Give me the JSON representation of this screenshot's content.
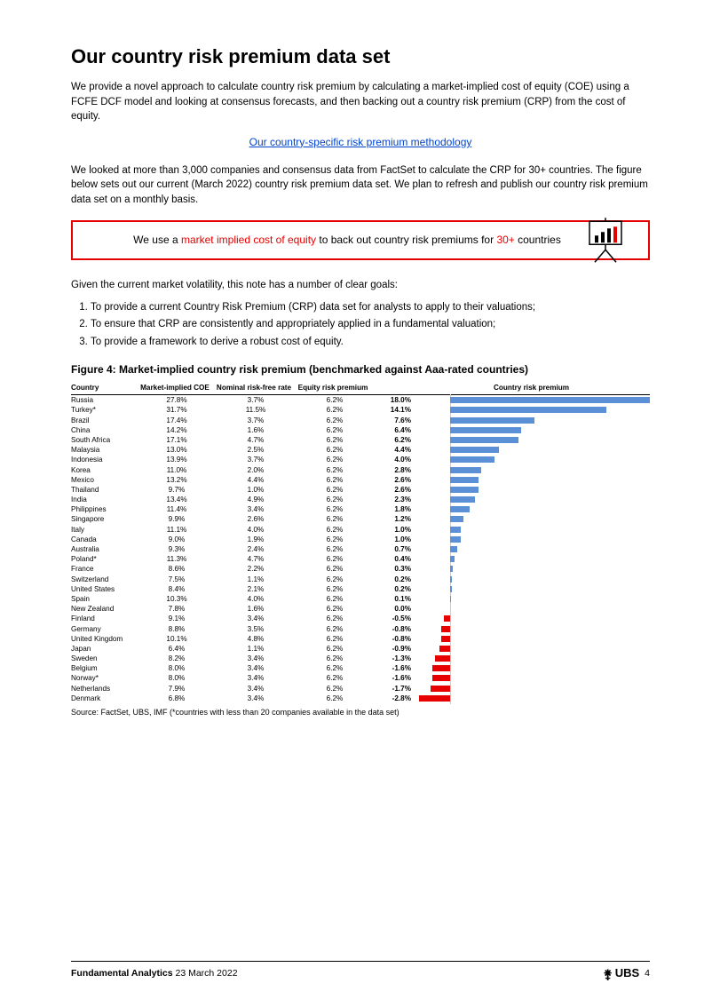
{
  "title": "Our country risk premium data set",
  "intro": "We provide a novel approach to calculate country risk premium by calculating a market-implied cost of equity (COE) using a FCFE DCF model and looking at consensus forecasts, and then backing out a country risk premium (CRP) from the cost of equity.",
  "methodology_link_text": "Our country-specific risk premium methodology",
  "para2": "We looked at more than 3,000 companies and consensus data from FactSet to calculate the CRP for 30+ countries. The figure below sets out our current (March 2022) country risk premium data set. We plan to refresh and publish our country risk premium data set on a monthly basis.",
  "callout_pre": "We use a ",
  "callout_red1": "market implied cost of equity",
  "callout_mid": " to back out country risk premiums for ",
  "callout_red2": "30+",
  "callout_post": " countries",
  "goals_lead": "Given the current market volatility, this note has a number of clear goals:",
  "goals": [
    "To provide a current Country Risk Premium (CRP) data set for analysts to apply to their valuations;",
    "To ensure that CRP are consistently and appropriately applied in a fundamental valuation;",
    "To provide a framework to derive a robust cost of equity."
  ],
  "figure_title": "Figure 4: Market-implied country risk premium (benchmarked against Aaa-rated countries)",
  "table": {
    "headers": {
      "country": "Country",
      "coe": "Market-implied COE",
      "rf": "Nominal risk-free rate",
      "erp": "Equity risk premium",
      "crp": "Country risk premium"
    },
    "chart": {
      "min": -3.0,
      "max": 18.0,
      "zero_color": "#cccccc",
      "pos_color": "#5b8fd6",
      "neg_color": "#e60000"
    },
    "rows": [
      {
        "country": "Russia",
        "coe": "27.8%",
        "rf": "3.7%",
        "erp": "6.2%",
        "crp_label": "18.0%",
        "crp": 18.0
      },
      {
        "country": "Turkey*",
        "coe": "31.7%",
        "rf": "11.5%",
        "erp": "6.2%",
        "crp_label": "14.1%",
        "crp": 14.1
      },
      {
        "country": "Brazil",
        "coe": "17.4%",
        "rf": "3.7%",
        "erp": "6.2%",
        "crp_label": "7.6%",
        "crp": 7.6
      },
      {
        "country": "China",
        "coe": "14.2%",
        "rf": "1.6%",
        "erp": "6.2%",
        "crp_label": "6.4%",
        "crp": 6.4
      },
      {
        "country": "South Africa",
        "coe": "17.1%",
        "rf": "4.7%",
        "erp": "6.2%",
        "crp_label": "6.2%",
        "crp": 6.2
      },
      {
        "country": "Malaysia",
        "coe": "13.0%",
        "rf": "2.5%",
        "erp": "6.2%",
        "crp_label": "4.4%",
        "crp": 4.4
      },
      {
        "country": "Indonesia",
        "coe": "13.9%",
        "rf": "3.7%",
        "erp": "6.2%",
        "crp_label": "4.0%",
        "crp": 4.0
      },
      {
        "country": "Korea",
        "coe": "11.0%",
        "rf": "2.0%",
        "erp": "6.2%",
        "crp_label": "2.8%",
        "crp": 2.8
      },
      {
        "country": "Mexico",
        "coe": "13.2%",
        "rf": "4.4%",
        "erp": "6.2%",
        "crp_label": "2.6%",
        "crp": 2.6
      },
      {
        "country": "Thailand",
        "coe": "9.7%",
        "rf": "1.0%",
        "erp": "6.2%",
        "crp_label": "2.6%",
        "crp": 2.6
      },
      {
        "country": "India",
        "coe": "13.4%",
        "rf": "4.9%",
        "erp": "6.2%",
        "crp_label": "2.3%",
        "crp": 2.3
      },
      {
        "country": "Philippines",
        "coe": "11.4%",
        "rf": "3.4%",
        "erp": "6.2%",
        "crp_label": "1.8%",
        "crp": 1.8
      },
      {
        "country": "Singapore",
        "coe": "9.9%",
        "rf": "2.6%",
        "erp": "6.2%",
        "crp_label": "1.2%",
        "crp": 1.2
      },
      {
        "country": "Italy",
        "coe": "11.1%",
        "rf": "4.0%",
        "erp": "6.2%",
        "crp_label": "1.0%",
        "crp": 1.0
      },
      {
        "country": "Canada",
        "coe": "9.0%",
        "rf": "1.9%",
        "erp": "6.2%",
        "crp_label": "1.0%",
        "crp": 1.0
      },
      {
        "country": "Australia",
        "coe": "9.3%",
        "rf": "2.4%",
        "erp": "6.2%",
        "crp_label": "0.7%",
        "crp": 0.7
      },
      {
        "country": "Poland*",
        "coe": "11.3%",
        "rf": "4.7%",
        "erp": "6.2%",
        "crp_label": "0.4%",
        "crp": 0.4
      },
      {
        "country": "France",
        "coe": "8.6%",
        "rf": "2.2%",
        "erp": "6.2%",
        "crp_label": "0.3%",
        "crp": 0.3
      },
      {
        "country": "Switzerland",
        "coe": "7.5%",
        "rf": "1.1%",
        "erp": "6.2%",
        "crp_label": "0.2%",
        "crp": 0.2
      },
      {
        "country": "United States",
        "coe": "8.4%",
        "rf": "2.1%",
        "erp": "6.2%",
        "crp_label": "0.2%",
        "crp": 0.2
      },
      {
        "country": "Spain",
        "coe": "10.3%",
        "rf": "4.0%",
        "erp": "6.2%",
        "crp_label": "0.1%",
        "crp": 0.1
      },
      {
        "country": "New Zealand",
        "coe": "7.8%",
        "rf": "1.6%",
        "erp": "6.2%",
        "crp_label": "0.0%",
        "crp": 0.0
      },
      {
        "country": "Finland",
        "coe": "9.1%",
        "rf": "3.4%",
        "erp": "6.2%",
        "crp_label": "-0.5%",
        "crp": -0.5
      },
      {
        "country": "Germany",
        "coe": "8.8%",
        "rf": "3.5%",
        "erp": "6.2%",
        "crp_label": "-0.8%",
        "crp": -0.8
      },
      {
        "country": "United Kingdom",
        "coe": "10.1%",
        "rf": "4.8%",
        "erp": "6.2%",
        "crp_label": "-0.8%",
        "crp": -0.8
      },
      {
        "country": "Japan",
        "coe": "6.4%",
        "rf": "1.1%",
        "erp": "6.2%",
        "crp_label": "-0.9%",
        "crp": -0.9
      },
      {
        "country": "Sweden",
        "coe": "8.2%",
        "rf": "3.4%",
        "erp": "6.2%",
        "crp_label": "-1.3%",
        "crp": -1.3
      },
      {
        "country": "Belgium",
        "coe": "8.0%",
        "rf": "3.4%",
        "erp": "6.2%",
        "crp_label": "-1.6%",
        "crp": -1.6
      },
      {
        "country": "Norway*",
        "coe": "8.0%",
        "rf": "3.4%",
        "erp": "6.2%",
        "crp_label": "-1.6%",
        "crp": -1.6
      },
      {
        "country": "Netherlands",
        "coe": "7.9%",
        "rf": "3.4%",
        "erp": "6.2%",
        "crp_label": "-1.7%",
        "crp": -1.7
      },
      {
        "country": "Denmark",
        "coe": "6.8%",
        "rf": "3.4%",
        "erp": "6.2%",
        "crp_label": "-2.8%",
        "crp": -2.8
      }
    ]
  },
  "footnote": "Source: FactSet, UBS, IMF (*countries with less than 20 companies available in the data set)",
  "footer": {
    "brand": "Fundamental Analytics",
    "date": "23 March 2022",
    "logo": "UBS",
    "page": "4"
  }
}
